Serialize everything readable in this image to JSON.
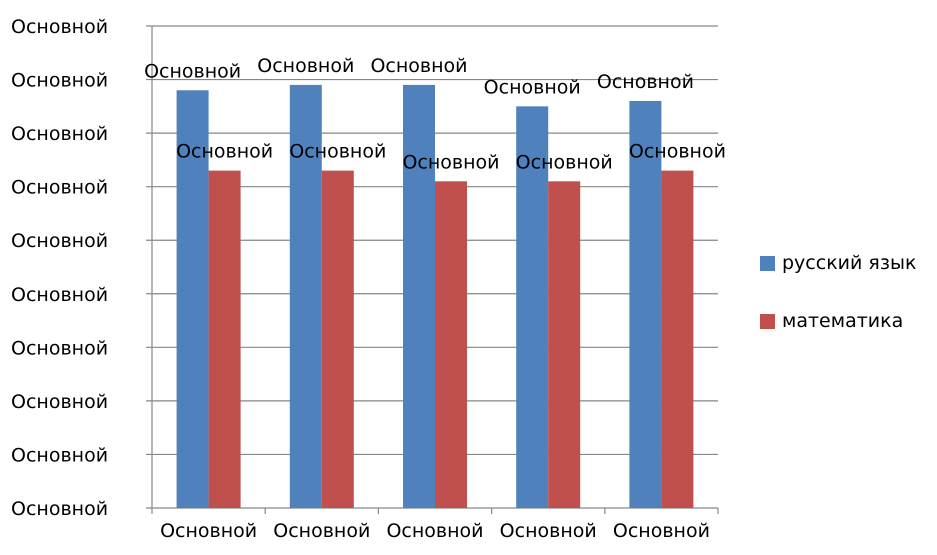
{
  "chart_data": {
    "type": "bar",
    "y_tick_labels": [
      "Основной",
      "Основной",
      "Основной",
      "Основной",
      "Основной",
      "Основной",
      "Основной",
      "Основной",
      "Основной",
      "Основной"
    ],
    "ylim": [
      0,
      9
    ],
    "grid": true,
    "legend_position": "right",
    "categories": [
      "Основной",
      "Основной",
      "Основной",
      "Основной",
      "Основной"
    ],
    "series": [
      {
        "name": "русский язык",
        "color": "#4F81BD",
        "values": [
          7.8,
          7.9,
          7.9,
          7.5,
          7.6
        ],
        "data_labels": [
          "Основной",
          "Основной",
          "Основной",
          "Основной",
          "Основной"
        ]
      },
      {
        "name": "математика",
        "color": "#C0504D",
        "values": [
          6.3,
          6.3,
          6.1,
          6.1,
          6.3
        ],
        "data_labels": [
          "Основной",
          "Основной",
          "Основной",
          "Основной",
          "Основной"
        ]
      }
    ]
  }
}
